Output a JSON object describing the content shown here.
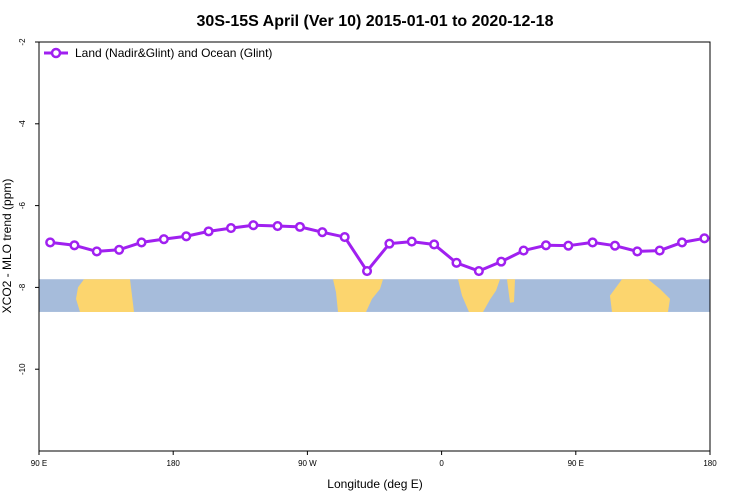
{
  "chart_data": {
    "type": "line",
    "title": "30S-15S April (Ver 10)   2015-01-01 to 2020-12-18",
    "xlabel": "Longitude (deg E)",
    "ylabel": "XCO2 - MLO trend (ppm)",
    "xlim": [
      90,
      450
    ],
    "ylim": [
      -12,
      -2
    ],
    "ytick_values": [
      -2,
      -4,
      -6,
      -8,
      -10
    ],
    "ytick_labels": [
      "-2",
      "-4",
      "-6",
      "-8",
      "-10"
    ],
    "xtick_values": [
      90,
      162,
      234,
      306,
      378,
      450
    ],
    "xtick_labels": [
      "90 E",
      "180",
      "90 W",
      "0",
      "90 E",
      "180"
    ],
    "grid": false,
    "legend_position": "top-left",
    "series": [
      {
        "name": "Land (Nadir&Glint) and Ocean (Glint)",
        "color": "#a020f0",
        "x": [
          96,
          109,
          121,
          133,
          145,
          157,
          169,
          181,
          193,
          205,
          218,
          230,
          242,
          254,
          266,
          278,
          290,
          302,
          314,
          326,
          338,
          350,
          362,
          374,
          387,
          399,
          411,
          423,
          435,
          447
        ],
        "y": [
          -6.9,
          -6.97,
          -7.12,
          -7.08,
          -6.9,
          -6.82,
          -6.75,
          -6.63,
          -6.55,
          -6.48,
          -6.5,
          -6.52,
          -6.65,
          -6.77,
          -7.6,
          -6.93,
          -6.88,
          -6.95,
          -7.4,
          -7.6,
          -7.37,
          -7.1,
          -6.97,
          -6.98,
          -6.9,
          -6.98,
          -7.12,
          -7.1,
          -6.9,
          -6.8
        ]
      }
    ],
    "map_strip": {
      "y_range": [
        -7.8,
        -8.6
      ],
      "ocean_color": "#a6bcdb",
      "land_color": "#fcd56e"
    }
  }
}
